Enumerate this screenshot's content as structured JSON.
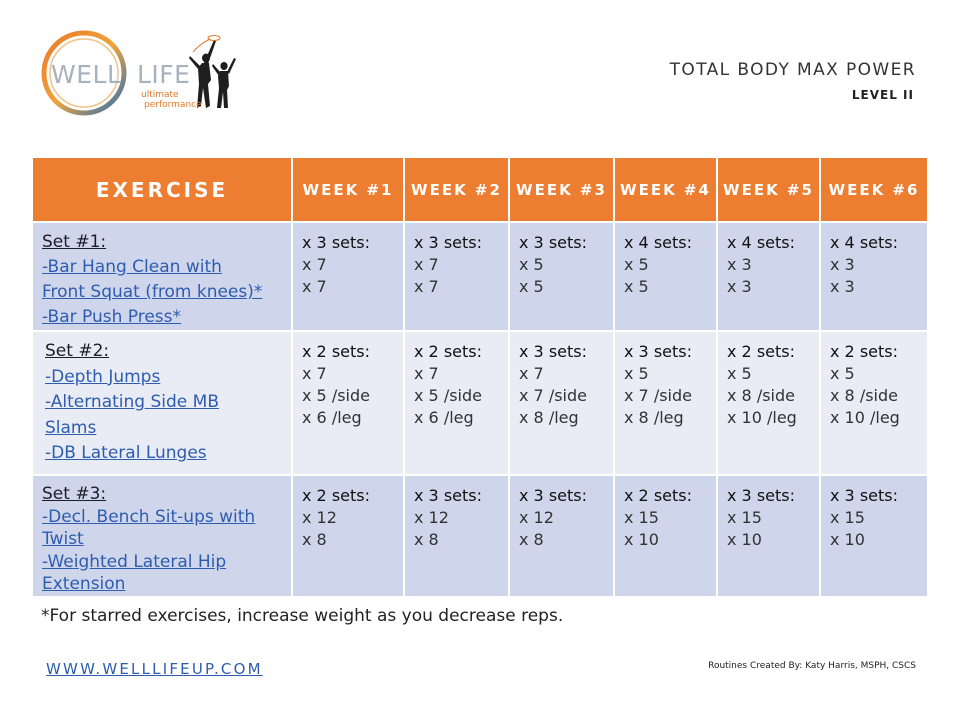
{
  "logo": {
    "word1": "WELL",
    "word2": "LIFE",
    "tagline1": "ultimate",
    "tagline2": "performance"
  },
  "header": {
    "title": "TOTAL BODY MAX POWER",
    "level": "LEVEL II"
  },
  "table": {
    "columns": [
      "EXERCISE",
      "WEEK #1",
      "WEEK #2",
      "WEEK #3",
      "WEEK #4",
      "WEEK #5",
      "WEEK #6"
    ],
    "rows": [
      {
        "set": "Set #1:",
        "exercises": [
          "-Bar Hang Clean with",
          "Front Squat (from knees)*",
          "-Bar Push Press*"
        ],
        "weeks": [
          {
            "sets": "x 3 sets:",
            "reps": [
              "x 7",
              "x 7"
            ]
          },
          {
            "sets": "x 3 sets:",
            "reps": [
              "x 7",
              "x 7"
            ]
          },
          {
            "sets": "x 3 sets:",
            "reps": [
              "x 5",
              "x 5"
            ]
          },
          {
            "sets": "x 4 sets:",
            "reps": [
              "x 5",
              "x 5"
            ]
          },
          {
            "sets": "x 4 sets:",
            "reps": [
              "x 3",
              "x 3"
            ]
          },
          {
            "sets": "x 4 sets:",
            "reps": [
              "x 3",
              "x 3"
            ]
          }
        ]
      },
      {
        "set": "Set #2:",
        "exercises": [
          "-Depth Jumps",
          "-Alternating Side MB",
          "Slams",
          "-DB Lateral Lunges"
        ],
        "weeks": [
          {
            "sets": "x 2 sets:",
            "reps": [
              "x 7",
              "x 5 /side",
              "x 6 /leg"
            ]
          },
          {
            "sets": "x 2 sets:",
            "reps": [
              "x 7",
              "x 5 /side",
              "x 6 /leg"
            ]
          },
          {
            "sets": "x 3 sets:",
            "reps": [
              "x 7",
              "x 7 /side",
              "x 8 /leg"
            ]
          },
          {
            "sets": "x 3 sets:",
            "reps": [
              "x 5",
              "x 7 /side",
              "x 8 /leg"
            ]
          },
          {
            "sets": "x 2 sets:",
            "reps": [
              "x 5",
              "x 8 /side",
              "x 10 /leg"
            ]
          },
          {
            "sets": "x 2 sets:",
            "reps": [
              "x 5",
              "x 8 /side",
              "x 10 /leg"
            ]
          }
        ]
      },
      {
        "set": "Set #3:",
        "exercises": [
          "-Decl. Bench Sit-ups with",
          "Twist",
          "-Weighted Lateral Hip",
          "Extension"
        ],
        "weeks": [
          {
            "sets": "x 2 sets:",
            "reps": [
              "x 12",
              "x 8"
            ]
          },
          {
            "sets": "x 3 sets:",
            "reps": [
              "x 12",
              "x 8"
            ]
          },
          {
            "sets": "x 3 sets:",
            "reps": [
              "x 12",
              "x 8"
            ]
          },
          {
            "sets": "x 2 sets:",
            "reps": [
              "x 15",
              "x 10"
            ]
          },
          {
            "sets": "x 3 sets:",
            "reps": [
              "x 15",
              "x 10"
            ]
          },
          {
            "sets": "x 3 sets:",
            "reps": [
              "x 15",
              "x 10"
            ]
          }
        ]
      }
    ]
  },
  "footnote": "*For starred exercises, increase weight as you decrease reps.",
  "footer": {
    "website": "WWW.WELLLIFEUP.COM",
    "credit": "Routines Created By: Katy Harris, MSPH, CSCS"
  },
  "colors": {
    "header_orange": "#ed7d31",
    "row_dark": "#cfd5ea",
    "row_light": "#e9ebf5",
    "link_blue": "#2e5db0"
  }
}
